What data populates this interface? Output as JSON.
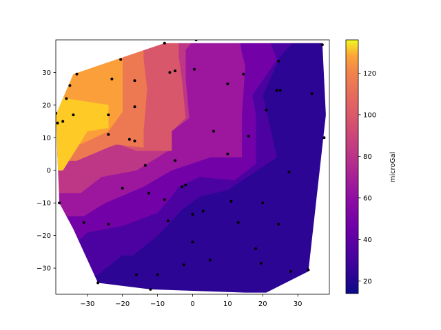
{
  "chart_data": {
    "type": "contourf",
    "xlim": [
      -39,
      39
    ],
    "ylim": [
      -38,
      40
    ],
    "xticks": [
      -30,
      -20,
      -10,
      0,
      10,
      20,
      30
    ],
    "yticks": [
      -30,
      -20,
      -10,
      0,
      10,
      20,
      30
    ],
    "xtick_labels": [
      "−30",
      "−20",
      "−10",
      "0",
      "10",
      "20",
      "30"
    ],
    "ytick_labels": [
      "−30",
      "−20",
      "−10",
      "0",
      "10",
      "20",
      "30"
    ],
    "colorbar": {
      "label": "microGal",
      "range": [
        14,
        136
      ],
      "ticks": [
        20,
        40,
        60,
        80,
        100,
        120
      ],
      "tick_labels": [
        "20",
        "40",
        "60",
        "80",
        "100",
        "120"
      ],
      "colormap": "plasma"
    },
    "hull": [
      [
        -39,
        17
      ],
      [
        -38,
        -10
      ],
      [
        -34,
        -18
      ],
      [
        -27,
        -34.5
      ],
      [
        -12,
        -36.5
      ],
      [
        15,
        -37.5
      ],
      [
        21,
        -37.5
      ],
      [
        33,
        -31
      ],
      [
        38,
        17
      ],
      [
        37,
        39
      ],
      [
        -8,
        39
      ],
      [
        -34,
        29.5
      ],
      [
        -39,
        17
      ]
    ],
    "contour_levels": [
      {
        "level_range": [
          14,
          27
        ],
        "color": "#2c0594",
        "points": [
          [
            -41,
            -41
          ],
          [
            41,
            -41
          ],
          [
            41,
            42
          ],
          [
            31,
            42
          ],
          [
            25,
            35
          ],
          [
            20,
            23
          ],
          [
            24,
            4
          ],
          [
            10,
            -6
          ],
          [
            2,
            -8
          ],
          [
            -3,
            -12
          ],
          [
            -10,
            -20
          ],
          [
            -17,
            -26
          ],
          [
            -20,
            -26
          ],
          [
            -27,
            -32
          ],
          [
            -41,
            -33
          ]
        ]
      },
      {
        "level_range": [
          27,
          41
        ],
        "color": "#4c02a1",
        "points": [
          [
            -41,
            -33
          ],
          [
            -27,
            -32
          ],
          [
            -20,
            -26
          ],
          [
            -17,
            -26
          ],
          [
            -10,
            -20
          ],
          [
            -3,
            -12
          ],
          [
            2,
            -8
          ],
          [
            10,
            -6
          ],
          [
            24,
            4
          ],
          [
            20,
            23
          ],
          [
            25,
            35
          ],
          [
            31,
            42
          ],
          [
            21,
            42
          ],
          [
            24,
            34
          ],
          [
            17,
            23
          ],
          [
            18,
            17
          ],
          [
            18,
            2
          ],
          [
            12,
            -3
          ],
          [
            2,
            -2
          ],
          [
            -4,
            -5
          ],
          [
            -6,
            -8
          ],
          [
            -10,
            -13
          ],
          [
            -20,
            -17
          ],
          [
            -30,
            -19
          ],
          [
            -32,
            -21
          ],
          [
            -41,
            -21
          ]
        ]
      },
      {
        "level_range": [
          41,
          54
        ],
        "color": "#7201a8",
        "points": [
          [
            -41,
            -21
          ],
          [
            -32,
            -21
          ],
          [
            -30,
            -19
          ],
          [
            -20,
            -17
          ],
          [
            -10,
            -13
          ],
          [
            -6,
            -8
          ],
          [
            -4,
            -5
          ],
          [
            2,
            -2
          ],
          [
            12,
            -3
          ],
          [
            18,
            2
          ],
          [
            18,
            17
          ],
          [
            17,
            23
          ],
          [
            24,
            34
          ],
          [
            21,
            42
          ],
          [
            13,
            42
          ],
          [
            14,
            36
          ],
          [
            15,
            32
          ],
          [
            14,
            17
          ],
          [
            14,
            4
          ],
          [
            5,
            4
          ],
          [
            -6,
            0
          ],
          [
            -14,
            -5
          ],
          [
            -25,
            -10
          ],
          [
            -31,
            -14
          ],
          [
            -41,
            -14
          ]
        ]
      },
      {
        "level_range": [
          54,
          68
        ],
        "color": "#9c179e",
        "points": [
          [
            -41,
            -14
          ],
          [
            -31,
            -14
          ],
          [
            -25,
            -10
          ],
          [
            -14,
            -5
          ],
          [
            -6,
            0
          ],
          [
            5,
            4
          ],
          [
            14,
            4
          ],
          [
            14,
            17
          ],
          [
            15,
            32
          ],
          [
            14,
            36
          ],
          [
            13,
            42
          ],
          [
            2,
            42
          ],
          [
            -2,
            37
          ],
          [
            -2,
            28
          ],
          [
            -1,
            16
          ],
          [
            -6,
            12
          ],
          [
            -7,
            6
          ],
          [
            -16,
            0
          ],
          [
            -26,
            -2
          ],
          [
            -32,
            -7
          ],
          [
            -41,
            -7
          ]
        ]
      },
      {
        "level_range": [
          68,
          82
        ],
        "color": "#bd3786",
        "points": [
          [
            -41,
            -7
          ],
          [
            -32,
            -7
          ],
          [
            -26,
            -2
          ],
          [
            -16,
            0
          ],
          [
            -7,
            6
          ],
          [
            -6,
            12
          ],
          [
            -1,
            16
          ],
          [
            -2,
            28
          ],
          [
            -2,
            37
          ],
          [
            2,
            42
          ],
          [
            -4,
            42
          ],
          [
            -4,
            35
          ],
          [
            -3,
            27
          ],
          [
            -2,
            16
          ],
          [
            -6,
            12
          ],
          [
            -6,
            6
          ],
          [
            -16,
            6
          ],
          [
            -21,
            8
          ],
          [
            -28,
            6
          ],
          [
            -41,
            6
          ]
        ]
      },
      {
        "level_range": [
          82,
          95
        ],
        "color": "#d8576b",
        "points": [
          [
            -41,
            6
          ],
          [
            -28,
            6
          ],
          [
            -21,
            8
          ],
          [
            -16,
            6
          ],
          [
            -6,
            6
          ],
          [
            -6,
            12
          ],
          [
            -2,
            16
          ],
          [
            -3,
            27
          ],
          [
            -4,
            35
          ],
          [
            -4,
            42
          ],
          [
            -14,
            42
          ],
          [
            -14,
            34
          ],
          [
            -13,
            25
          ],
          [
            -14,
            12
          ],
          [
            -14,
            7
          ],
          [
            -22,
            8
          ],
          [
            -33,
            3
          ],
          [
            -41,
            3
          ]
        ]
      },
      {
        "level_range": [
          95,
          109
        ],
        "color": "#ed7953",
        "points": [
          [
            -41,
            3
          ],
          [
            -33,
            3
          ],
          [
            -22,
            8
          ],
          [
            -14,
            7
          ],
          [
            -14,
            12
          ],
          [
            -13,
            25
          ],
          [
            -14,
            34
          ],
          [
            -14,
            42
          ],
          [
            -19,
            42
          ],
          [
            -20,
            36
          ],
          [
            -20,
            18
          ],
          [
            -24,
            12
          ],
          [
            -32,
            8
          ],
          [
            -41,
            7
          ]
        ]
      },
      {
        "level_range": [
          109,
          122
        ],
        "color": "#fb9f3a",
        "points": [
          [
            -41,
            7
          ],
          [
            -32,
            8
          ],
          [
            -24,
            12
          ],
          [
            -20,
            18
          ],
          [
            -20,
            36
          ],
          [
            -19,
            42
          ],
          [
            -41,
            42
          ]
        ]
      },
      {
        "level_range": [
          122,
          136
        ],
        "color": "#fdca26",
        "points": [
          [
            -41,
            24
          ],
          [
            -36,
            22
          ],
          [
            -24,
            20
          ],
          [
            -24,
            13
          ],
          [
            -30,
            12
          ],
          [
            -37,
            0
          ],
          [
            -41,
            0
          ]
        ]
      }
    ],
    "points": [
      [
        -39,
        17.5
      ],
      [
        -38.5,
        14.5
      ],
      [
        -37,
        15
      ],
      [
        -36,
        22
      ],
      [
        -34,
        17
      ],
      [
        -35,
        26
      ],
      [
        -33,
        29.5
      ],
      [
        -20.5,
        34
      ],
      [
        -8,
        39
      ],
      [
        1,
        40
      ],
      [
        37,
        38.5
      ],
      [
        -38,
        -10
      ],
      [
        -31,
        -16
      ],
      [
        -27,
        -34.5
      ],
      [
        -16,
        -32
      ],
      [
        -10,
        -32
      ],
      [
        -12,
        -36.5
      ],
      [
        -24,
        -16.5
      ],
      [
        -20,
        -5.5
      ],
      [
        -18,
        9.5
      ],
      [
        -16.5,
        9
      ],
      [
        -24,
        11
      ],
      [
        -24,
        17
      ],
      [
        -23,
        28
      ],
      [
        -16.5,
        27.5
      ],
      [
        -16.5,
        19.5
      ],
      [
        -6.5,
        30
      ],
      [
        -13.5,
        1.5
      ],
      [
        -12.5,
        -7
      ],
      [
        -8,
        -9
      ],
      [
        -7,
        -15.5
      ],
      [
        -5,
        3
      ],
      [
        -3,
        -5
      ],
      [
        -2,
        -4.5
      ],
      [
        0,
        -13.5
      ],
      [
        0,
        -22
      ],
      [
        -2.5,
        -29
      ],
      [
        3,
        -12.5
      ],
      [
        5,
        -27.5
      ],
      [
        11,
        -9.5
      ],
      [
        13,
        -16
      ],
      [
        6,
        12
      ],
      [
        10,
        26.5
      ],
      [
        10,
        5
      ],
      [
        14.5,
        29.5
      ],
      [
        16,
        10.5
      ],
      [
        18,
        -24
      ],
      [
        19.5,
        -28.5
      ],
      [
        20,
        -10
      ],
      [
        21,
        18.5
      ],
      [
        24,
        24.5
      ],
      [
        25,
        24.5
      ],
      [
        24.5,
        33.5
      ],
      [
        24.5,
        -16.5
      ],
      [
        27.5,
        -0.5
      ],
      [
        28,
        -31
      ],
      [
        33,
        -30.5
      ],
      [
        34,
        23.5
      ],
      [
        37.5,
        10
      ],
      [
        0.5,
        31
      ],
      [
        -5,
        30.5
      ]
    ]
  }
}
